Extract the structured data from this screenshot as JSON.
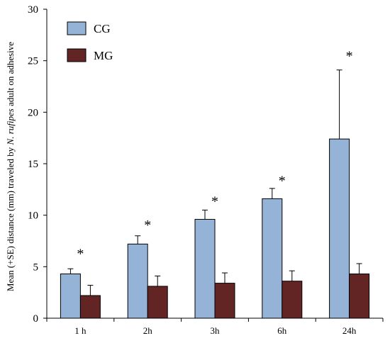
{
  "chart_data": {
    "type": "bar",
    "title": "",
    "xlabel": "",
    "ylabel_prefix": "Mean (+SE) distance (mm) traveled by ",
    "ylabel_species": "N. rufipes",
    "ylabel_suffix": " adult on adhesive",
    "categories": [
      "1 h",
      "2h",
      "3h",
      "6h",
      "24h"
    ],
    "ylim": [
      0,
      30
    ],
    "yticks": [
      0,
      5,
      10,
      15,
      20,
      25,
      30
    ],
    "grid": false,
    "legend_position": "top-left",
    "series": [
      {
        "name": "CG",
        "color": "#95B3D7",
        "values": [
          4.3,
          7.2,
          9.6,
          11.6,
          17.4
        ],
        "se": [
          0.5,
          0.8,
          0.9,
          1.0,
          6.7
        ]
      },
      {
        "name": "MG",
        "color": "#632523",
        "values": [
          2.2,
          3.1,
          3.4,
          3.6,
          4.3
        ],
        "se": [
          1.0,
          1.0,
          1.0,
          1.0,
          1.0
        ]
      }
    ],
    "annotations": [
      {
        "category": "1 h",
        "text": "*",
        "y": 6.5
      },
      {
        "category": "2h",
        "text": "*",
        "y": 9.3
      },
      {
        "category": "3h",
        "text": "*",
        "y": 11.6
      },
      {
        "category": "6h",
        "text": "*",
        "y": 13.6
      },
      {
        "category": "24h",
        "text": "*",
        "y": 25.7
      }
    ]
  }
}
